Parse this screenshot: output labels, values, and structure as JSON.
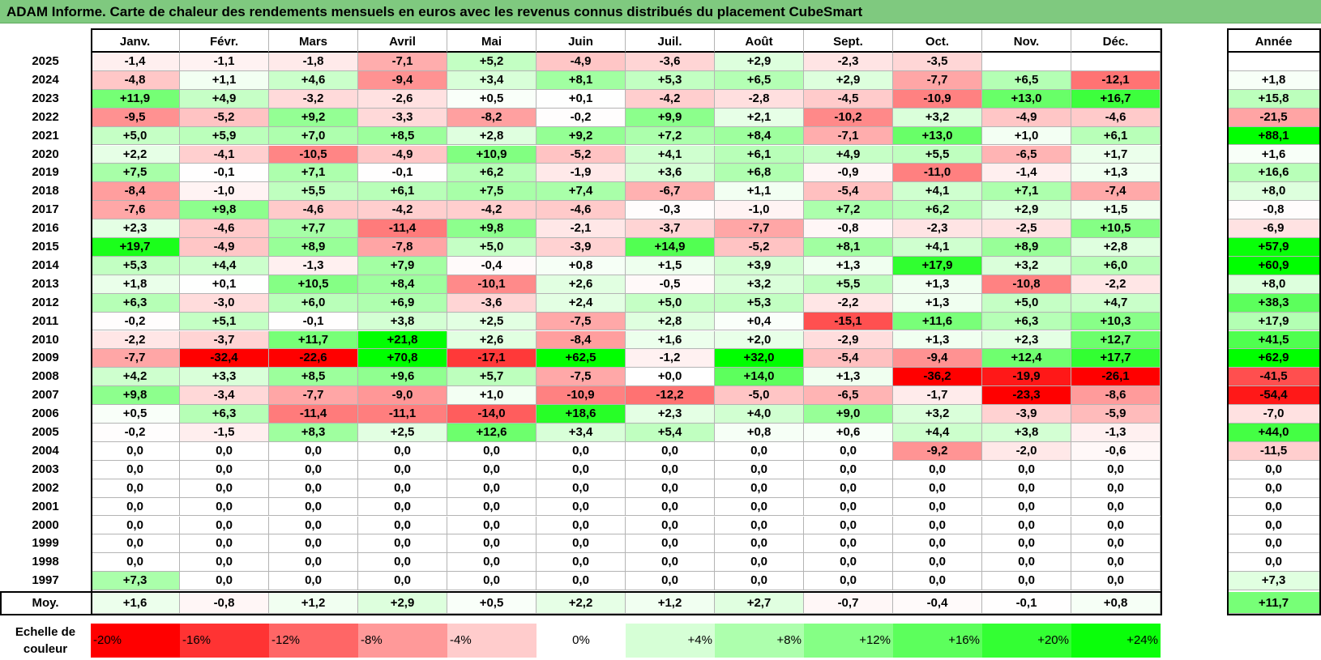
{
  "title": "ADAM Informe. Carte de chaleur des rendements mensuels en euros avec les revenus connus distribués du placement CubeSmart",
  "chart_data": {
    "type": "heatmap",
    "title": "ADAM Informe. Carte de chaleur des rendements mensuels en euros avec les revenus connus distribués du placement CubeSmart",
    "months": [
      "Janv.",
      "Févr.",
      "Mars",
      "Avril",
      "Mai",
      "Juin",
      "Juil.",
      "Août",
      "Sept.",
      "Oct.",
      "Nov.",
      "Déc."
    ],
    "year_column_label": "Année",
    "rows": [
      {
        "year": "2025",
        "months": [
          "-1,4",
          "-1,1",
          "-1,8",
          "-7,1",
          "+5,2",
          "-4,9",
          "-3,6",
          "+2,9",
          "-2,3",
          "-3,5",
          "",
          ""
        ],
        "annual": ""
      },
      {
        "year": "2024",
        "months": [
          "-4,8",
          "+1,1",
          "+4,6",
          "-9,4",
          "+3,4",
          "+8,1",
          "+5,3",
          "+6,5",
          "+2,9",
          "-7,7",
          "+6,5",
          "-12,1"
        ],
        "annual": "+1,8"
      },
      {
        "year": "2023",
        "months": [
          "+11,9",
          "+4,9",
          "-3,2",
          "-2,6",
          "+0,5",
          "+0,1",
          "-4,2",
          "-2,8",
          "-4,5",
          "-10,9",
          "+13,0",
          "+16,7"
        ],
        "annual": "+15,8"
      },
      {
        "year": "2022",
        "months": [
          "-9,5",
          "-5,2",
          "+9,2",
          "-3,3",
          "-8,2",
          "-0,2",
          "+9,9",
          "+2,1",
          "-10,2",
          "+3,2",
          "-4,9",
          "-4,6"
        ],
        "annual": "-21,5"
      },
      {
        "year": "2021",
        "months": [
          "+5,0",
          "+5,9",
          "+7,0",
          "+8,5",
          "+2,8",
          "+9,2",
          "+7,2",
          "+8,4",
          "-7,1",
          "+13,0",
          "+1,0",
          "+6,1"
        ],
        "annual": "+88,1"
      },
      {
        "year": "2020",
        "months": [
          "+2,2",
          "-4,1",
          "-10,5",
          "-4,9",
          "+10,9",
          "-5,2",
          "+4,1",
          "+6,1",
          "+4,9",
          "+5,5",
          "-6,5",
          "+1,7"
        ],
        "annual": "+1,6"
      },
      {
        "year": "2019",
        "months": [
          "+7,5",
          "-0,1",
          "+7,1",
          "-0,1",
          "+6,2",
          "-1,9",
          "+3,6",
          "+6,8",
          "-0,9",
          "-11,0",
          "-1,4",
          "+1,3"
        ],
        "annual": "+16,6"
      },
      {
        "year": "2018",
        "months": [
          "-8,4",
          "-1,0",
          "+5,5",
          "+6,1",
          "+7,5",
          "+7,4",
          "-6,7",
          "+1,1",
          "-5,4",
          "+4,1",
          "+7,1",
          "-7,4"
        ],
        "annual": "+8,0"
      },
      {
        "year": "2017",
        "months": [
          "-7,6",
          "+9,8",
          "-4,6",
          "-4,2",
          "-4,2",
          "-4,6",
          "-0,3",
          "-1,0",
          "+7,2",
          "+6,2",
          "+2,9",
          "+1,5"
        ],
        "annual": "-0,8"
      },
      {
        "year": "2016",
        "months": [
          "+2,3",
          "-4,6",
          "+7,7",
          "-11,4",
          "+9,8",
          "-2,1",
          "-3,7",
          "-7,7",
          "-0,8",
          "-2,3",
          "-2,5",
          "+10,5"
        ],
        "annual": "-6,9"
      },
      {
        "year": "2015",
        "months": [
          "+19,7",
          "-4,9",
          "+8,9",
          "-7,8",
          "+5,0",
          "-3,9",
          "+14,9",
          "-5,2",
          "+8,1",
          "+4,1",
          "+8,9",
          "+2,8"
        ],
        "annual": "+57,9"
      },
      {
        "year": "2014",
        "months": [
          "+5,3",
          "+4,4",
          "-1,3",
          "+7,9",
          "-0,4",
          "+0,8",
          "+1,5",
          "+3,9",
          "+1,3",
          "+17,9",
          "+3,2",
          "+6,0"
        ],
        "annual": "+60,9"
      },
      {
        "year": "2013",
        "months": [
          "+1,8",
          "+0,1",
          "+10,5",
          "+8,4",
          "-10,1",
          "+2,6",
          "-0,5",
          "+3,2",
          "+5,5",
          "+1,3",
          "-10,8",
          "-2,2"
        ],
        "annual": "+8,0"
      },
      {
        "year": "2012",
        "months": [
          "+6,3",
          "-3,0",
          "+6,0",
          "+6,9",
          "-3,6",
          "+2,4",
          "+5,0",
          "+5,3",
          "-2,2",
          "+1,3",
          "+5,0",
          "+4,7"
        ],
        "annual": "+38,3"
      },
      {
        "year": "2011",
        "months": [
          "-0,2",
          "+5,1",
          "-0,1",
          "+3,8",
          "+2,5",
          "-7,5",
          "+2,8",
          "+0,4",
          "-15,1",
          "+11,6",
          "+6,3",
          "+10,3"
        ],
        "annual": "+17,9"
      },
      {
        "year": "2010",
        "months": [
          "-2,2",
          "-3,7",
          "+11,7",
          "+21,8",
          "+2,6",
          "-8,4",
          "+1,6",
          "+2,0",
          "-2,9",
          "+1,3",
          "+2,3",
          "+12,7"
        ],
        "annual": "+41,5"
      },
      {
        "year": "2009",
        "months": [
          "-7,7",
          "-32,4",
          "-22,6",
          "+70,8",
          "-17,1",
          "+62,5",
          "-1,2",
          "+32,0",
          "-5,4",
          "-9,4",
          "+12,4",
          "+17,7"
        ],
        "annual": "+62,9"
      },
      {
        "year": "2008",
        "months": [
          "+4,2",
          "+3,3",
          "+8,5",
          "+9,6",
          "+5,7",
          "-7,5",
          "+0,0",
          "+14,0",
          "+1,3",
          "-36,2",
          "-19,9",
          "-26,1"
        ],
        "annual": "-41,5"
      },
      {
        "year": "2007",
        "months": [
          "+9,8",
          "-3,4",
          "-7,7",
          "-9,0",
          "+1,0",
          "-10,9",
          "-12,2",
          "-5,0",
          "-6,5",
          "-1,7",
          "-23,3",
          "-8,6"
        ],
        "annual": "-54,4"
      },
      {
        "year": "2006",
        "months": [
          "+0,5",
          "+6,3",
          "-11,4",
          "-11,1",
          "-14,0",
          "+18,6",
          "+2,3",
          "+4,0",
          "+9,0",
          "+3,2",
          "-3,9",
          "-5,9"
        ],
        "annual": "-7,0"
      },
      {
        "year": "2005",
        "months": [
          "-0,2",
          "-1,5",
          "+8,3",
          "+2,5",
          "+12,6",
          "+3,4",
          "+5,4",
          "+0,8",
          "+0,6",
          "+4,4",
          "+3,8",
          "-1,3"
        ],
        "annual": "+44,0"
      },
      {
        "year": "2004",
        "months": [
          "0,0",
          "0,0",
          "0,0",
          "0,0",
          "0,0",
          "0,0",
          "0,0",
          "0,0",
          "0,0",
          "-9,2",
          "-2,0",
          "-0,6"
        ],
        "annual": "-11,5"
      },
      {
        "year": "2003",
        "months": [
          "0,0",
          "0,0",
          "0,0",
          "0,0",
          "0,0",
          "0,0",
          "0,0",
          "0,0",
          "0,0",
          "0,0",
          "0,0",
          "0,0"
        ],
        "annual": "0,0"
      },
      {
        "year": "2002",
        "months": [
          "0,0",
          "0,0",
          "0,0",
          "0,0",
          "0,0",
          "0,0",
          "0,0",
          "0,0",
          "0,0",
          "0,0",
          "0,0",
          "0,0"
        ],
        "annual": "0,0"
      },
      {
        "year": "2001",
        "months": [
          "0,0",
          "0,0",
          "0,0",
          "0,0",
          "0,0",
          "0,0",
          "0,0",
          "0,0",
          "0,0",
          "0,0",
          "0,0",
          "0,0"
        ],
        "annual": "0,0"
      },
      {
        "year": "2000",
        "months": [
          "0,0",
          "0,0",
          "0,0",
          "0,0",
          "0,0",
          "0,0",
          "0,0",
          "0,0",
          "0,0",
          "0,0",
          "0,0",
          "0,0"
        ],
        "annual": "0,0"
      },
      {
        "year": "1999",
        "months": [
          "0,0",
          "0,0",
          "0,0",
          "0,0",
          "0,0",
          "0,0",
          "0,0",
          "0,0",
          "0,0",
          "0,0",
          "0,0",
          "0,0"
        ],
        "annual": "0,0"
      },
      {
        "year": "1998",
        "months": [
          "0,0",
          "0,0",
          "0,0",
          "0,0",
          "0,0",
          "0,0",
          "0,0",
          "0,0",
          "0,0",
          "0,0",
          "0,0",
          "0,0"
        ],
        "annual": "0,0"
      },
      {
        "year": "1997",
        "months": [
          "+7,3",
          "0,0",
          "0,0",
          "0,0",
          "0,0",
          "0,0",
          "0,0",
          "0,0",
          "0,0",
          "0,0",
          "0,0",
          "0,0"
        ],
        "annual": "+7,3"
      }
    ],
    "average": {
      "label": "Moy.",
      "months": [
        "+1,6",
        "-0,8",
        "+1,2",
        "+2,9",
        "+0,5",
        "+2,2",
        "+1,2",
        "+2,7",
        "-0,7",
        "-0,4",
        "-0,1",
        "+0,8"
      ],
      "annual": "+11,7"
    },
    "legend": {
      "label": "Echelle de couleur",
      "steps": [
        {
          "label": "-20%",
          "value": -20,
          "color": "#ff0000"
        },
        {
          "label": "-16%",
          "value": -16,
          "color": "#ff3333"
        },
        {
          "label": "-12%",
          "value": -12,
          "color": "#ff6666"
        },
        {
          "label": "-8%",
          "value": -8,
          "color": "#ff9999"
        },
        {
          "label": "-4%",
          "value": -4,
          "color": "#ffcccc"
        },
        {
          "label": "0%",
          "value": 0,
          "color": "#ffffff"
        },
        {
          "label": "+4%",
          "value": 4,
          "color": "#d6ffd6"
        },
        {
          "label": "+8%",
          "value": 8,
          "color": "#adffad"
        },
        {
          "label": "+12%",
          "value": 12,
          "color": "#85ff85"
        },
        {
          "label": "+16%",
          "value": 16,
          "color": "#5cff5c"
        },
        {
          "label": "+20%",
          "value": 20,
          "color": "#33ff33"
        },
        {
          "label": "+24%",
          "value": 24,
          "color": "#0aff0a"
        }
      ]
    },
    "colors": {
      "negative_max": "#ff0000",
      "neutral": "#ffffff",
      "positive_max": "#00ff00",
      "title_bar": "#7fc97f"
    }
  }
}
